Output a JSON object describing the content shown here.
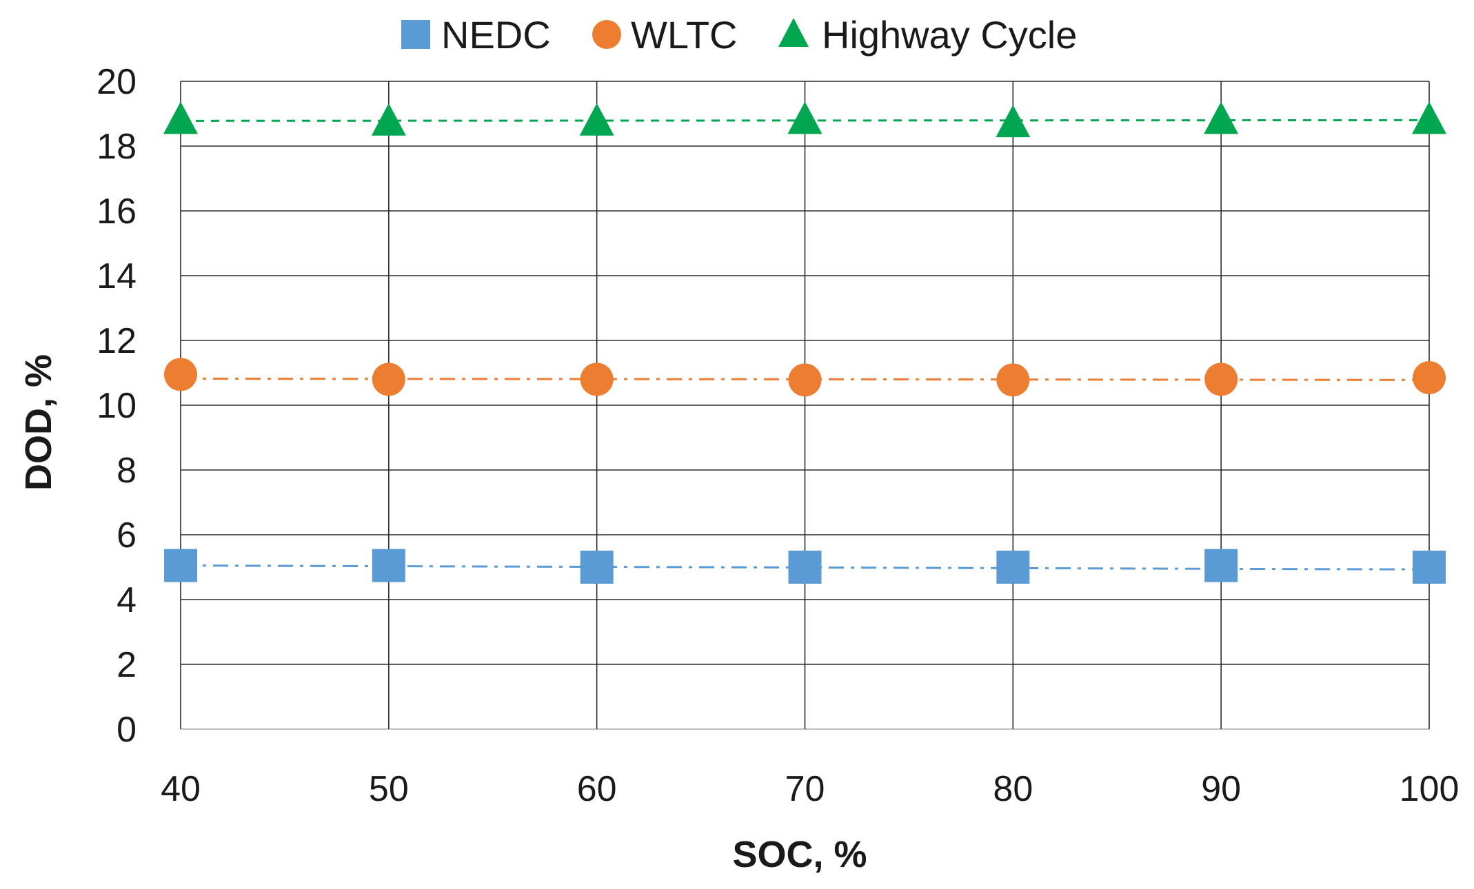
{
  "chart_data": {
    "type": "line",
    "title": "",
    "xlabel": "SOC, %",
    "ylabel": "DOD, %",
    "x": [
      40,
      50,
      60,
      70,
      80,
      90,
      100
    ],
    "x_tick_labels": [
      "40",
      "50",
      "60",
      "70",
      "80",
      "90",
      "100"
    ],
    "y_tick_labels": [
      "0",
      "2",
      "4",
      "6",
      "8",
      "10",
      "12",
      "14",
      "16",
      "18",
      "20"
    ],
    "xlim": [
      40,
      100
    ],
    "ylim": [
      0,
      20
    ],
    "y_ticks": [
      0,
      2,
      4,
      6,
      8,
      10,
      12,
      14,
      16,
      18,
      20
    ],
    "grid": true,
    "legend_position": "top-center",
    "series": [
      {
        "name": "NEDC",
        "marker": "square",
        "color": "#5B9BD5",
        "line_style": "dash-dot",
        "values": [
          5.05,
          5.05,
          5.0,
          5.0,
          5.0,
          5.05,
          5.0
        ],
        "trend": [
          5.05,
          4.93
        ]
      },
      {
        "name": "WLTC",
        "marker": "circle",
        "color": "#ED7D31",
        "line_style": "dash-dot",
        "values": [
          10.95,
          10.8,
          10.8,
          10.78,
          10.78,
          10.8,
          10.85
        ],
        "trend": [
          10.82,
          10.78
        ]
      },
      {
        "name": "Highway Cycle",
        "marker": "triangle",
        "color": "#00A650",
        "line_style": "dashed",
        "values": [
          18.8,
          18.75,
          18.75,
          18.8,
          18.7,
          18.8,
          18.8
        ],
        "trend": [
          18.78,
          18.8
        ]
      }
    ]
  }
}
